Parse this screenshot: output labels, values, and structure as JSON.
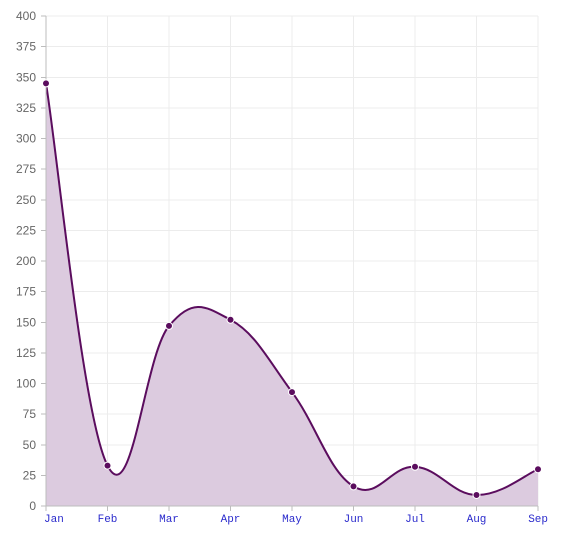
{
  "chart_data": {
    "type": "area",
    "categories": [
      "Jan",
      "Feb",
      "Mar",
      "Apr",
      "May",
      "Jun",
      "Jul",
      "Aug",
      "Sep"
    ],
    "series": [
      {
        "values": [
          345,
          33,
          147,
          152,
          93,
          16,
          32,
          9,
          30
        ]
      }
    ],
    "ylim": [
      0,
      400
    ],
    "ytick_step": 25,
    "grid": true,
    "legend": "none",
    "colors": {
      "line": "#5b0d5e",
      "fill": "#dccbdf",
      "point": "#5b0d5e",
      "x_tick": "#2b2bcc",
      "y_tick": "#666666"
    }
  }
}
